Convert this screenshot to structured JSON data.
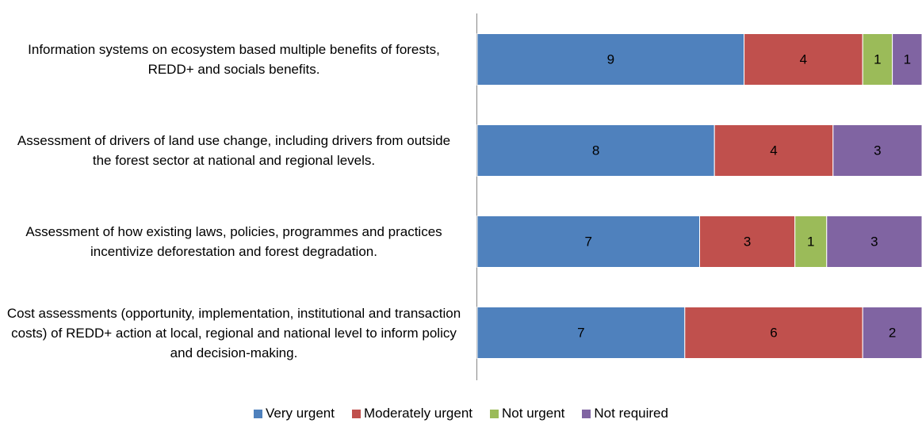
{
  "chart_data": {
    "type": "bar",
    "orientation": "horizontal",
    "stacking": "percent",
    "categories": [
      "Information systems on ecosystem based multiple benefits of forests, REDD+ and socials benefits.",
      "Assessment of drivers of land use change, including drivers from outside the forest sector at national and regional levels.",
      "Assessment of how existing laws, policies, programmes and practices incentivize deforestation and forest degradation.",
      "Cost assessments (opportunity, implementation, institutional and transaction costs) of REDD+ action at local, regional and national level to inform policy and decision-making."
    ],
    "series": [
      {
        "name": "Very urgent",
        "color": "#4f81bd",
        "values": [
          9,
          8,
          7,
          7
        ]
      },
      {
        "name": "Moderately urgent",
        "color": "#c0504d",
        "values": [
          4,
          4,
          3,
          6
        ]
      },
      {
        "name": "Not urgent",
        "color": "#9bbb59",
        "values": [
          1,
          0,
          1,
          0
        ]
      },
      {
        "name": "Not required",
        "color": "#8064a2",
        "values": [
          1,
          3,
          3,
          2
        ]
      }
    ],
    "legend": "bottom"
  }
}
